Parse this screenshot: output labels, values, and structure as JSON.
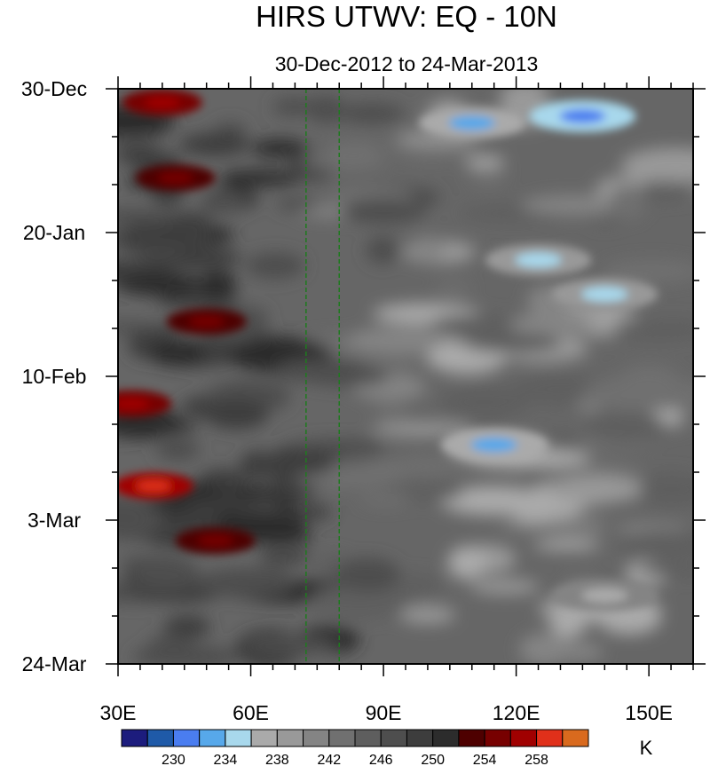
{
  "chart_data": {
    "type": "heatmap",
    "title": "HIRS UTWV: EQ - 10N",
    "subtitle": "30-Dec-2012 to 24-Mar-2013",
    "x_axis": {
      "range": [
        30,
        160
      ],
      "ticks": [
        30,
        60,
        90,
        120,
        150
      ],
      "tick_labels": [
        "30E",
        "60E",
        "90E",
        "120E",
        "150E"
      ],
      "minor_every": 5
    },
    "y_axis": {
      "range_days": [
        0,
        84
      ],
      "direction": "time increases downward",
      "ticks_days": [
        0,
        21,
        42,
        63,
        84
      ],
      "tick_labels": [
        "30-Dec",
        "20-Jan",
        "10-Feb",
        "3-Mar",
        "24-Mar"
      ],
      "minor_every_days": 7
    },
    "reference_lines": [
      {
        "longitude": 72.5,
        "style": "dashed",
        "color": "#1e7b1e"
      },
      {
        "longitude": 80,
        "style": "dashed",
        "color": "#1e7b1e"
      }
    ],
    "colorbar": {
      "units": "K",
      "levels": [
        228,
        230,
        232,
        234,
        236,
        238,
        240,
        242,
        244,
        246,
        248,
        250,
        252,
        254,
        256,
        258,
        260
      ],
      "labeled_levels": [
        "230",
        "234",
        "238",
        "242",
        "246",
        "250",
        "254",
        "258"
      ],
      "colors": [
        "#1c1c7d",
        "#1f5aa8",
        "#4a7df0",
        "#57a8ea",
        "#a8d8ec",
        "#aaaaaa",
        "#999999",
        "#848484",
        "#707070",
        "#5e5e5e",
        "#4e4e4e",
        "#3d3d3d",
        "#2c2c2c",
        "#4e0000",
        "#770000",
        "#a00000",
        "#e0301a",
        "#d96a1e"
      ]
    },
    "data_summary": {
      "grid": "longitude 30E-160E x 84 days, brightness temperature (K)",
      "warm_dry_zones": [
        {
          "lon": 40,
          "day": 2,
          "value_k": 257
        },
        {
          "lon": 43,
          "day": 13,
          "value_k": 255
        },
        {
          "lon": 50,
          "day": 34,
          "value_k": 255
        },
        {
          "lon": 33,
          "day": 46,
          "value_k": 256
        },
        {
          "lon": 38,
          "day": 58,
          "value_k": 258
        },
        {
          "lon": 52,
          "day": 66,
          "value_k": 255
        }
      ],
      "cold_moist_zones": [
        {
          "lon": 110,
          "day": 5,
          "value_k": 232
        },
        {
          "lon": 135,
          "day": 4,
          "value_k": 230
        },
        {
          "lon": 125,
          "day": 25,
          "value_k": 234
        },
        {
          "lon": 140,
          "day": 30,
          "value_k": 234
        },
        {
          "lon": 115,
          "day": 52,
          "value_k": 232
        },
        {
          "lon": 140,
          "day": 74,
          "value_k": 236
        }
      ]
    }
  }
}
